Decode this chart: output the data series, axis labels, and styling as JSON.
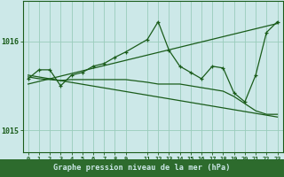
{
  "title": "",
  "xlabel": "Graphe pression niveau de la mer (hPa)",
  "bg_color": "#cce8e8",
  "grid_color": "#99ccbb",
  "line_color": "#1a5c1a",
  "label_bg": "#2d6b2d",
  "label_fg": "#cce8e8",
  "x_ticks": [
    0,
    1,
    2,
    3,
    4,
    5,
    6,
    7,
    8,
    9,
    11,
    12,
    13,
    14,
    15,
    16,
    17,
    18,
    19,
    20,
    21,
    22,
    23
  ],
  "xlim": [
    -0.5,
    23.5
  ],
  "ylim": [
    1014.75,
    1016.45
  ],
  "yticks": [
    1015,
    1016
  ],
  "series_main": {
    "x": [
      0,
      1,
      2,
      3,
      4,
      5,
      6,
      7,
      8,
      9,
      11,
      12,
      13,
      14,
      15,
      16,
      17,
      18,
      19,
      20,
      21,
      22,
      23
    ],
    "y": [
      1015.58,
      1015.68,
      1015.68,
      1015.5,
      1015.62,
      1015.65,
      1015.72,
      1015.75,
      1015.82,
      1015.88,
      1016.02,
      1016.22,
      1015.9,
      1015.72,
      1015.65,
      1015.58,
      1015.72,
      1015.7,
      1015.42,
      1015.32,
      1015.62,
      1016.1,
      1016.22
    ]
  },
  "series_flat": {
    "x": [
      0,
      1,
      2,
      3,
      4,
      5,
      6,
      7,
      8,
      9,
      11,
      12,
      13,
      14,
      15,
      16,
      17,
      18,
      19,
      20,
      21,
      22,
      23
    ],
    "y": [
      1015.6,
      1015.58,
      1015.57,
      1015.56,
      1015.57,
      1015.57,
      1015.57,
      1015.57,
      1015.57,
      1015.57,
      1015.54,
      1015.52,
      1015.52,
      1015.52,
      1015.5,
      1015.48,
      1015.46,
      1015.44,
      1015.38,
      1015.3,
      1015.22,
      1015.18,
      1015.18
    ]
  },
  "trend_up": {
    "x": [
      0,
      23
    ],
    "y": [
      1015.52,
      1016.2
    ]
  },
  "trend_down": {
    "x": [
      0,
      23
    ],
    "y": [
      1015.62,
      1015.15
    ]
  }
}
